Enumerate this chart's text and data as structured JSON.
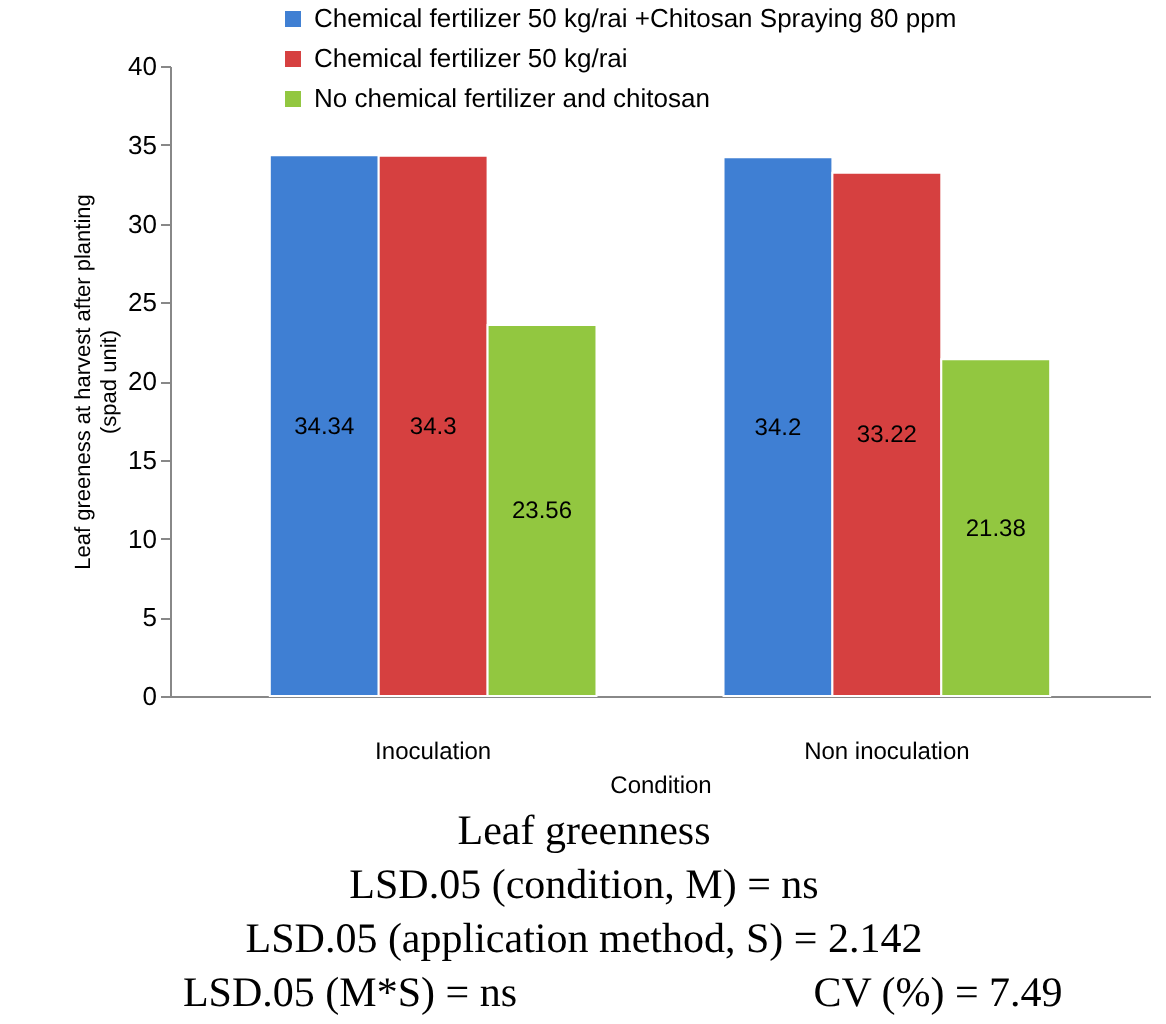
{
  "chart_data": {
    "type": "bar",
    "title": "Leaf greenness",
    "categories": [
      "Inoculation",
      "Non inoculation"
    ],
    "series": [
      {
        "name": "Chemical fertilizer 50 kg/rai +Chitosan Spraying  80 ppm",
        "color": "#3f7fd3",
        "values": [
          34.34,
          34.2
        ]
      },
      {
        "name": "Chemical fertilizer 50 kg/rai",
        "color": "#d64040",
        "values": [
          34.3,
          33.22
        ]
      },
      {
        "name": "No chemical fertilizer and chitosan",
        "color": "#92c740",
        "values": [
          23.56,
          21.38
        ]
      }
    ],
    "xlabel": "Condition",
    "ylabel": "Leaf greeness at harvest after planting\n(spad unit)",
    "ylim": [
      0,
      40
    ],
    "yticks": [
      0,
      5,
      10,
      15,
      20,
      25,
      30,
      35,
      40
    ],
    "grid": false,
    "legend": "top",
    "data_labels": true,
    "annotations": [
      "LSD.05 (condition, M) = ns",
      "LSD.05 (application method, S) = 2.142",
      "LSD.05 (M*S) = ns",
      "CV (%) = 7.49"
    ]
  }
}
